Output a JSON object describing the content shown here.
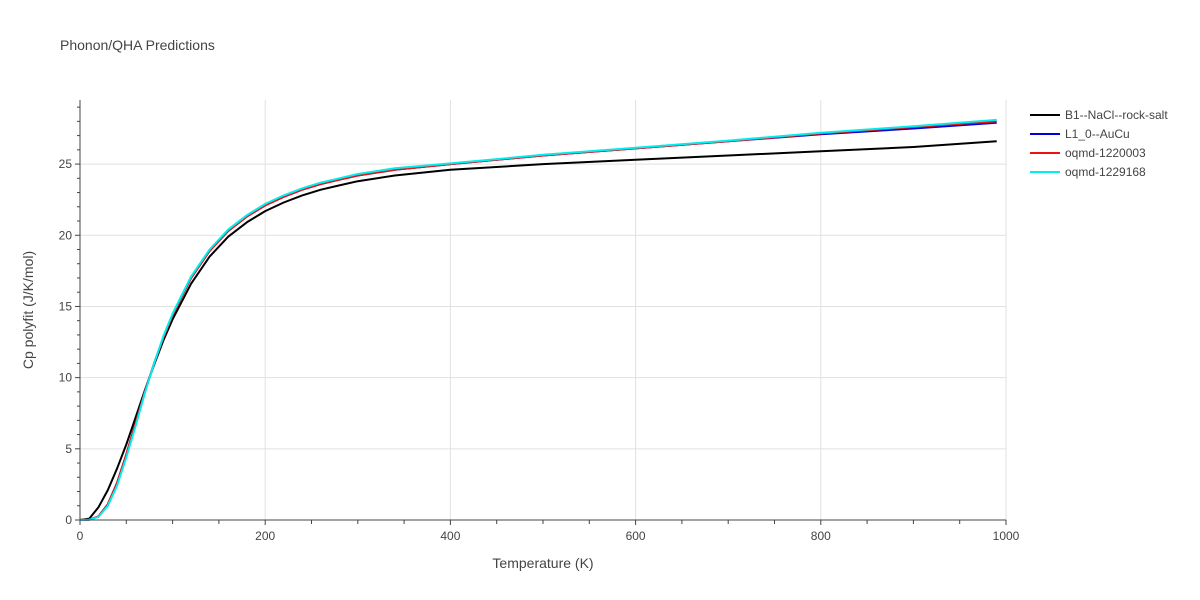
{
  "chart_data": {
    "type": "line",
    "title": "Phonon/QHA Predictions",
    "xlabel": "Temperature (K)",
    "ylabel": "Cp polyfit (J/K/mol)",
    "xlim": [
      0,
      1000
    ],
    "ylim": [
      0,
      29.5
    ],
    "x_ticks": [
      0,
      200,
      400,
      600,
      800,
      1000
    ],
    "y_ticks": [
      0,
      5,
      10,
      15,
      20,
      25
    ],
    "grid": true,
    "legend_position": "top-right",
    "series": [
      {
        "name": "B1--NaCl--rock-salt",
        "color": "#000000",
        "x": [
          0,
          10,
          20,
          30,
          40,
          50,
          60,
          70,
          80,
          90,
          100,
          120,
          140,
          160,
          180,
          200,
          220,
          240,
          260,
          280,
          300,
          340,
          400,
          500,
          600,
          700,
          800,
          900,
          990
        ],
        "y": [
          0,
          0.1,
          0.9,
          2.1,
          3.6,
          5.3,
          7.2,
          9.1,
          10.9,
          12.6,
          14.1,
          16.6,
          18.5,
          19.9,
          20.9,
          21.7,
          22.3,
          22.8,
          23.2,
          23.5,
          23.8,
          24.2,
          24.6,
          25.0,
          25.3,
          25.6,
          25.9,
          26.2,
          26.6
        ]
      },
      {
        "name": "L1_0--AuCu",
        "color": "#0000dd",
        "x": [
          0,
          10,
          20,
          30,
          40,
          50,
          60,
          70,
          80,
          90,
          100,
          120,
          140,
          160,
          180,
          200,
          220,
          240,
          260,
          280,
          300,
          340,
          400,
          500,
          600,
          700,
          800,
          900,
          990
        ],
        "y": [
          0,
          0.02,
          0.25,
          1.1,
          2.6,
          4.6,
          6.8,
          9.0,
          11.0,
          12.8,
          14.4,
          17.0,
          18.9,
          20.3,
          21.3,
          22.1,
          22.7,
          23.2,
          23.6,
          23.9,
          24.2,
          24.6,
          25.0,
          25.6,
          26.1,
          26.6,
          27.1,
          27.5,
          27.9
        ]
      },
      {
        "name": "oqmd-1220003",
        "color": "#ee1111",
        "x": [
          0,
          10,
          20,
          30,
          40,
          50,
          60,
          70,
          80,
          90,
          100,
          120,
          140,
          160,
          180,
          200,
          220,
          240,
          260,
          280,
          300,
          340,
          400,
          500,
          600,
          700,
          800,
          900,
          990
        ],
        "y": [
          0,
          0.02,
          0.25,
          1.1,
          2.6,
          4.6,
          6.8,
          9.0,
          11.0,
          12.8,
          14.4,
          17.0,
          18.9,
          20.3,
          21.3,
          22.1,
          22.7,
          23.2,
          23.6,
          23.9,
          24.2,
          24.6,
          25.0,
          25.6,
          26.1,
          26.6,
          27.15,
          27.6,
          28.0
        ]
      },
      {
        "name": "oqmd-1229168",
        "color": "#00eeee",
        "x": [
          0,
          10,
          20,
          30,
          40,
          50,
          60,
          70,
          80,
          90,
          100,
          120,
          140,
          160,
          180,
          200,
          220,
          240,
          260,
          280,
          300,
          340,
          400,
          500,
          600,
          700,
          800,
          900,
          990
        ],
        "y": [
          0,
          0.02,
          0.22,
          1.0,
          2.4,
          4.4,
          6.6,
          8.9,
          11.0,
          12.9,
          14.5,
          17.1,
          19.0,
          20.4,
          21.4,
          22.2,
          22.8,
          23.3,
          23.7,
          24.0,
          24.3,
          24.7,
          25.05,
          25.65,
          26.15,
          26.65,
          27.2,
          27.65,
          28.1
        ]
      }
    ]
  }
}
